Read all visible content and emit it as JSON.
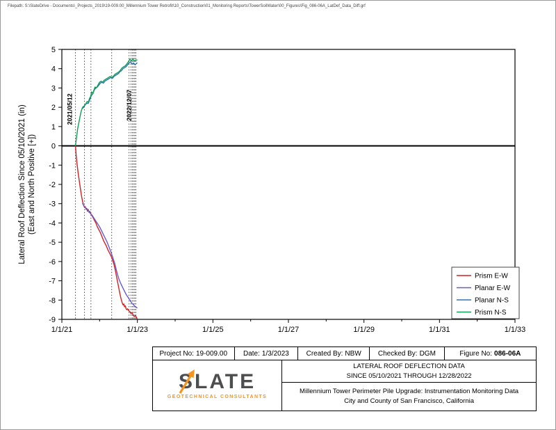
{
  "filepath": "Filepath: S:\\SlateDrive - Documents\\_Projects_2019\\19-009.00_Millennium Tower Retrofit\\10_Construction\\01_Monitoring Reports\\TowerSoilWater\\00_Figures\\Fig_086-06A_LatDef_Data_Diff.grf",
  "chart_data": {
    "type": "line",
    "title": "",
    "xlabel": "",
    "ylabel_line1": "Lateral Roof Deflection Since 05/10/2021 (in)",
    "ylabel_line2": "(East and North Positive [+])",
    "x_axis": {
      "span_years": 12,
      "major_tick_labels": [
        "1/1/21",
        "1/1/23",
        "1/1/25",
        "1/1/27",
        "1/1/29",
        "1/1/31",
        "1/1/33"
      ],
      "major_tick_positions": [
        0,
        2,
        4,
        6,
        8,
        10,
        12
      ],
      "minor_tick_positions": [
        1,
        3,
        5,
        7,
        9,
        11
      ]
    },
    "y_axis": {
      "min": -9,
      "max": 5,
      "tick_interval": 1,
      "ticks": [
        5,
        4,
        3,
        2,
        1,
        0,
        -1,
        -2,
        -3,
        -4,
        -5,
        -6,
        -7,
        -8,
        -9
      ]
    },
    "zero_line": 0,
    "grid": "off",
    "event_lines": {
      "style": "dotted",
      "positions": [
        0.36,
        0.6,
        0.77,
        1.32,
        1.78,
        1.83,
        1.87,
        1.9,
        1.93,
        1.96
      ]
    },
    "annotations": [
      {
        "text": "2021/05/12",
        "x": 0.36,
        "y": 1.9,
        "rotation": -90
      },
      {
        "text": "2022/12/07",
        "x": 1.93,
        "y": 2.1,
        "rotation": -90
      }
    ],
    "legend": {
      "position": "bottom-right",
      "entries": [
        "Prism E-W",
        "Planar E-W",
        "Planar N-S",
        "Prism N-S"
      ]
    },
    "series": [
      {
        "name": "Prism E-W",
        "color": "#d42020",
        "x": [
          0.36,
          0.38,
          0.4,
          0.43,
          0.46,
          0.49,
          0.52,
          0.55,
          0.58,
          0.6,
          0.62,
          0.64,
          0.66,
          0.68,
          0.7,
          0.72,
          0.74,
          0.76,
          0.79,
          0.82,
          0.86,
          0.9,
          0.94,
          0.98,
          1.02,
          1.06,
          1.1,
          1.14,
          1.18,
          1.22,
          1.26,
          1.3,
          1.34,
          1.38,
          1.42,
          1.46,
          1.5,
          1.54,
          1.57,
          1.6,
          1.62,
          1.64,
          1.66,
          1.68,
          1.7,
          1.72,
          1.74,
          1.77,
          1.8,
          1.83,
          1.86,
          1.89,
          1.92,
          1.95,
          1.99
        ],
        "y": [
          0,
          -0.5,
          -0.9,
          -1.4,
          -1.8,
          -2.2,
          -2.6,
          -2.9,
          -3.1,
          -3.2,
          -3.15,
          -3.3,
          -3.25,
          -3.4,
          -3.3,
          -3.45,
          -3.4,
          -3.5,
          -3.6,
          -3.7,
          -3.85,
          -4.0,
          -4.2,
          -4.35,
          -4.5,
          -4.7,
          -4.9,
          -5.05,
          -5.2,
          -5.4,
          -5.55,
          -5.7,
          -5.9,
          -6.15,
          -6.5,
          -6.9,
          -7.3,
          -7.7,
          -7.95,
          -8.15,
          -8.25,
          -8.2,
          -8.35,
          -8.3,
          -8.45,
          -8.5,
          -8.45,
          -8.55,
          -8.6,
          -8.7,
          -8.65,
          -8.8,
          -8.85,
          -8.8,
          -8.95
        ]
      },
      {
        "name": "Planar E-W",
        "color": "#6a5acd",
        "x": [
          0.55,
          0.6,
          0.65,
          0.7,
          0.75,
          0.8,
          0.85,
          0.9,
          0.95,
          1.0,
          1.05,
          1.1,
          1.15,
          1.2,
          1.25,
          1.3,
          1.35,
          1.4,
          1.45,
          1.5,
          1.55,
          1.6,
          1.65,
          1.7,
          1.75,
          1.8,
          1.85,
          1.9,
          1.95,
          1.99
        ],
        "y": [
          -3.0,
          -3.15,
          -3.25,
          -3.35,
          -3.5,
          -3.6,
          -3.75,
          -3.9,
          -4.05,
          -4.2,
          -4.4,
          -4.6,
          -4.8,
          -5.0,
          -5.25,
          -5.5,
          -5.8,
          -6.1,
          -6.5,
          -6.85,
          -7.1,
          -7.3,
          -7.5,
          -7.7,
          -7.85,
          -8.0,
          -8.15,
          -8.25,
          -8.35,
          -8.4
        ]
      },
      {
        "name": "Planar N-S",
        "color": "#2e75b6",
        "x": [
          0.55,
          0.58,
          0.62,
          0.66,
          0.7,
          0.74,
          0.78,
          0.82,
          0.86,
          0.9,
          0.94,
          0.98,
          1.02,
          1.06,
          1.1,
          1.14,
          1.18,
          1.22,
          1.26,
          1.3,
          1.34,
          1.38,
          1.42,
          1.46,
          1.5,
          1.54,
          1.58,
          1.62,
          1.66,
          1.7,
          1.74,
          1.78,
          1.82,
          1.86,
          1.9,
          1.94,
          1.99
        ],
        "y": [
          1.95,
          2.0,
          2.15,
          2.2,
          2.2,
          2.4,
          2.6,
          2.7,
          2.9,
          3.0,
          3.05,
          3.15,
          3.25,
          3.3,
          3.25,
          3.35,
          3.4,
          3.45,
          3.5,
          3.55,
          3.5,
          3.6,
          3.65,
          3.7,
          3.75,
          3.85,
          3.9,
          4.0,
          4.05,
          4.1,
          4.2,
          4.3,
          4.35,
          4.25,
          4.3,
          4.2,
          4.3
        ]
      },
      {
        "name": "Prism N-S",
        "color": "#0e9e57",
        "x": [
          0.36,
          0.38,
          0.4,
          0.42,
          0.44,
          0.46,
          0.48,
          0.5,
          0.52,
          0.55,
          0.58,
          0.61,
          0.64,
          0.67,
          0.7,
          0.73,
          0.76,
          0.79,
          0.82,
          0.85,
          0.88,
          0.91,
          0.94,
          0.97,
          1.0,
          1.04,
          1.08,
          1.12,
          1.16,
          1.2,
          1.24,
          1.28,
          1.32,
          1.36,
          1.4,
          1.44,
          1.48,
          1.52,
          1.56,
          1.6,
          1.64,
          1.68,
          1.72,
          1.76,
          1.8,
          1.84,
          1.88,
          1.92,
          1.96,
          1.99
        ],
        "y": [
          0,
          0.3,
          0.6,
          0.9,
          1.1,
          1.3,
          1.5,
          1.7,
          1.85,
          2.0,
          2.05,
          2.1,
          2.2,
          2.3,
          2.25,
          2.45,
          2.55,
          2.8,
          2.7,
          2.9,
          3.05,
          3.0,
          3.1,
          3.2,
          3.3,
          3.35,
          3.3,
          3.4,
          3.45,
          3.5,
          3.55,
          3.6,
          3.55,
          3.6,
          3.7,
          3.75,
          3.8,
          3.85,
          3.95,
          4.05,
          4.1,
          4.15,
          4.25,
          4.35,
          4.5,
          4.4,
          4.5,
          4.4,
          4.45,
          4.45
        ]
      }
    ]
  },
  "title_block": {
    "row1": [
      {
        "label": "Project No:",
        "value": "19-009.00"
      },
      {
        "label": "Date:",
        "value": "1/3/2023"
      },
      {
        "label": "Created By:",
        "value": "NBW"
      },
      {
        "label": "Checked By:",
        "value": "DGM"
      },
      {
        "label": "Figure No:",
        "value": "086-06A"
      }
    ],
    "logo": {
      "wordmark": "SLATE",
      "tagline": "GEOTECHNICAL CONSULTANTS"
    },
    "title_line1": "LATERAL ROOF DEFLECTION DATA",
    "title_line2": "SINCE 05/10/2021 THROUGH 12/28/2022",
    "subtitle_line1": "Millennium Tower Perimeter Pile Upgrade: Instrumentation Monitoring Data",
    "subtitle_line2": "City and County of San Francisco, California"
  }
}
